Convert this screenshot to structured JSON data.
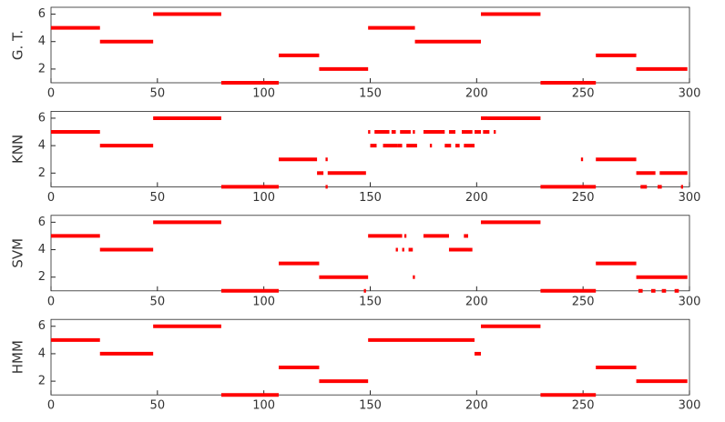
{
  "chart_data": [
    {
      "type": "segment",
      "ylabel": "G. T.",
      "color": "#ff0000",
      "xlim": [
        0,
        300
      ],
      "xticks": [
        0,
        50,
        100,
        150,
        200,
        250,
        300
      ],
      "ylim": [
        1,
        6.5
      ],
      "yticks": [
        2,
        4,
        6
      ],
      "x_start": [
        0,
        23,
        48,
        80,
        107,
        126,
        149,
        171,
        202,
        230,
        256,
        275
      ],
      "x_end": [
        23,
        48,
        80,
        107,
        126,
        149,
        171,
        202,
        230,
        256,
        275,
        299
      ],
      "values": [
        5,
        4,
        6,
        1,
        3,
        2,
        5,
        4,
        6,
        1,
        3,
        2
      ]
    },
    {
      "type": "segment",
      "ylabel": "KNN",
      "color": "#ff0000",
      "xlim": [
        0,
        300
      ],
      "xticks": [
        0,
        50,
        100,
        150,
        200,
        250,
        300
      ],
      "ylim": [
        1,
        6.5
      ],
      "yticks": [
        2,
        4,
        6
      ],
      "x_start": [
        0,
        23,
        48,
        80,
        107,
        125,
        129,
        129,
        130,
        149,
        150,
        152,
        156,
        160,
        163,
        164,
        167,
        170,
        175,
        178,
        185,
        187,
        190,
        193,
        194,
        199,
        202,
        203,
        205,
        208,
        230,
        249,
        256,
        275,
        277,
        285,
        286,
        296
      ],
      "x_end": [
        23,
        48,
        80,
        107,
        125,
        128,
        130,
        130,
        148,
        150,
        153,
        159,
        163,
        162,
        165,
        169,
        172,
        171,
        185,
        179,
        188,
        190,
        192,
        198,
        199,
        202,
        205,
        206,
        230,
        209,
        256,
        250,
        275,
        284,
        280,
        287,
        299,
        297
      ],
      "values": [
        5,
        4,
        6,
        1,
        3,
        2,
        3,
        1,
        2,
        5,
        4,
        5,
        4,
        5,
        4,
        5,
        4,
        5,
        5,
        4,
        4,
        5,
        4,
        5,
        4,
        5,
        6,
        5,
        6,
        5,
        1,
        3,
        3,
        2,
        1,
        1,
        2,
        1
      ]
    },
    {
      "type": "segment",
      "ylabel": "SVM",
      "color": "#ff0000",
      "xlim": [
        0,
        300
      ],
      "xticks": [
        0,
        50,
        100,
        150,
        200,
        250,
        300
      ],
      "ylim": [
        1,
        6.5
      ],
      "yticks": [
        2,
        4,
        6
      ],
      "x_start": [
        0,
        23,
        48,
        80,
        107,
        126,
        147,
        149,
        162,
        165,
        166,
        168,
        170,
        175,
        187,
        194,
        196,
        202,
        230,
        256,
        275,
        276,
        282,
        287,
        293
      ],
      "x_end": [
        23,
        48,
        80,
        107,
        126,
        149,
        148,
        165,
        163,
        166,
        167,
        170,
        171,
        187,
        196,
        196,
        198,
        230,
        256,
        275,
        299,
        278,
        284,
        289,
        295
      ],
      "values": [
        5,
        4,
        6,
        1,
        3,
        2,
        1,
        5,
        4,
        4,
        5,
        4,
        2,
        5,
        4,
        5,
        4,
        6,
        1,
        3,
        2,
        1,
        1,
        1,
        1
      ]
    },
    {
      "type": "segment",
      "ylabel": "HMM",
      "color": "#ff0000",
      "xlim": [
        0,
        300
      ],
      "xticks": [
        0,
        50,
        100,
        150,
        200,
        250,
        300
      ],
      "ylim": [
        1,
        6.5
      ],
      "yticks": [
        2,
        4,
        6
      ],
      "x_start": [
        0,
        23,
        48,
        80,
        107,
        126,
        149,
        199,
        202,
        230,
        256,
        275
      ],
      "x_end": [
        23,
        48,
        80,
        107,
        126,
        149,
        199,
        202,
        230,
        256,
        275,
        299
      ],
      "values": [
        5,
        4,
        6,
        1,
        3,
        2,
        5,
        4,
        6,
        1,
        3,
        2
      ]
    }
  ]
}
